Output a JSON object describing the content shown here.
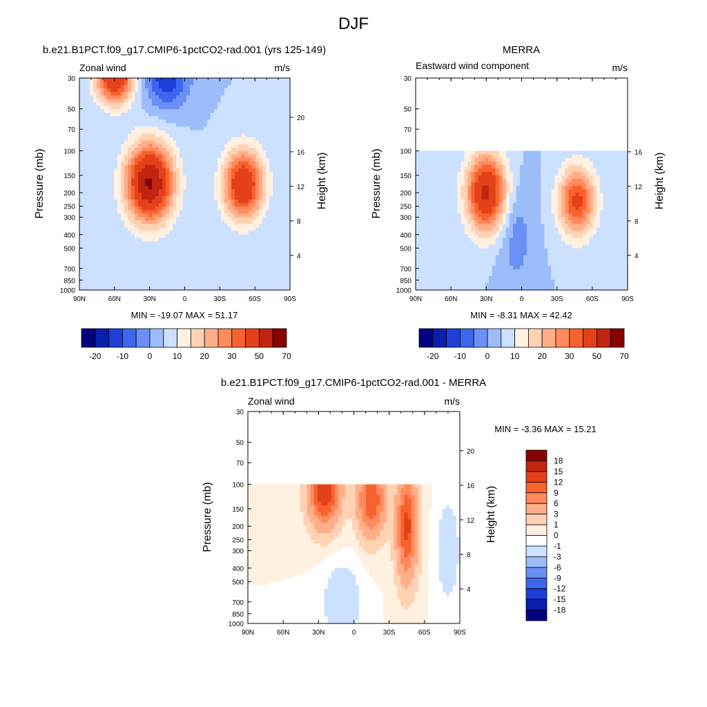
{
  "figure": {
    "title": "DJF"
  },
  "chart_data": [
    {
      "type": "heatmap",
      "title": "b.e21.B1PCT.f09_g17.CMIP6-1pctCO2-rad.001 (yrs 125-149)",
      "left_label": "Zonal wind",
      "units": "m/s",
      "xlabel": "",
      "ylabel": "Pressure (mb)",
      "y2label": "Height (km)",
      "x_ticks": [
        "90N",
        "60N",
        "30N",
        "0",
        "30S",
        "60S",
        "90S"
      ],
      "y_ticks": [
        "30",
        "50",
        "70",
        "100",
        "150",
        "200",
        "250",
        "300",
        "400",
        "500",
        "700",
        "850",
        "1000"
      ],
      "y2_ticks": [
        "20",
        "16",
        "12",
        "8",
        "4"
      ],
      "stats": "MIN = -19.07  MAX =  51.17",
      "data_top_mb": 30,
      "jets": [
        {
          "lat": 30,
          "p": 170,
          "value": 51,
          "lat_width": 14,
          "logp_width": 0.45
        },
        {
          "lat": -50,
          "p": 175,
          "value": 40,
          "lat_width": 12,
          "logp_width": 0.4
        },
        {
          "lat": 60,
          "p": 30,
          "value": 40,
          "lat_width": 11,
          "logp_width": 0.3
        },
        {
          "lat": 15,
          "p": 30,
          "value": -19,
          "lat_width": 13,
          "logp_width": 0.35
        }
      ],
      "colorbar": {
        "labels": [
          "-20",
          "-10",
          "0",
          "10",
          "20",
          "30",
          "50",
          "70"
        ]
      }
    },
    {
      "type": "heatmap",
      "title": "MERRA",
      "left_label": "Eastward wind component",
      "units": "m/s",
      "xlabel": "",
      "ylabel": "Pressure (mb)",
      "y2label": "Height (km)",
      "x_ticks": [
        "90N",
        "60N",
        "30N",
        "0",
        "30S",
        "60S",
        "90S"
      ],
      "y_ticks": [
        "30",
        "50",
        "70",
        "100",
        "150",
        "200",
        "250",
        "300",
        "400",
        "500",
        "700",
        "850",
        "1000"
      ],
      "y2_ticks": [
        "16",
        "12",
        "8",
        "4"
      ],
      "stats": "MIN =  -8.31  MAX =  42.42",
      "data_top_mb": 100,
      "jets": [
        {
          "lat": 30,
          "p": 200,
          "value": 42,
          "lat_width": 12,
          "logp_width": 0.45
        },
        {
          "lat": -47,
          "p": 230,
          "value": 32,
          "lat_width": 11,
          "logp_width": 0.4
        },
        {
          "lat": 5,
          "p": 400,
          "value": -8,
          "lat_width": 10,
          "logp_width": 0.6
        }
      ],
      "colorbar": {
        "labels": [
          "-20",
          "-10",
          "0",
          "10",
          "20",
          "30",
          "50",
          "70"
        ]
      }
    },
    {
      "type": "heatmap",
      "title": "b.e21.B1PCT.f09_g17.CMIP6-1pctCO2-rad.001 - MERRA",
      "left_label": "Zonal wind",
      "units": "m/s",
      "xlabel": "",
      "ylabel": "Pressure (mb)",
      "y2label": "Height (km)",
      "x_ticks": [
        "90N",
        "60N",
        "30N",
        "0",
        "30S",
        "60S",
        "90S"
      ],
      "y_ticks": [
        "30",
        "50",
        "70",
        "100",
        "150",
        "200",
        "250",
        "300",
        "400",
        "500",
        "700",
        "850",
        "1000"
      ],
      "y2_ticks": [
        "20",
        "16",
        "12",
        "8",
        "4"
      ],
      "stats": "MIN =  -3.36  MAX =  15.21",
      "data_top_mb": 100,
      "jets": [
        {
          "lat": 25,
          "p": 110,
          "value": 15,
          "lat_width": 9,
          "logp_width": 0.4
        },
        {
          "lat": -15,
          "p": 130,
          "value": 12,
          "lat_width": 8,
          "logp_width": 0.4
        },
        {
          "lat": -45,
          "p": 200,
          "value": 13,
          "lat_width": 6,
          "logp_width": 0.6
        },
        {
          "lat": 10,
          "p": 700,
          "value": -3,
          "lat_width": 10,
          "logp_width": 0.4
        },
        {
          "lat": -80,
          "p": 300,
          "value": -3,
          "lat_width": 6,
          "logp_width": 0.5
        }
      ],
      "colorbar": {
        "labels": [
          "18",
          "15",
          "12",
          "9",
          "6",
          "3",
          "1",
          "0",
          "-1",
          "-3",
          "-6",
          "-9",
          "-12",
          "-15",
          "-18"
        ]
      }
    }
  ],
  "palette": {
    "abs": [
      "#000080",
      "#0a1fad",
      "#1c3fd6",
      "#3c66ee",
      "#6a90f5",
      "#9dbcfa",
      "#cce0ff",
      "#fff0e0",
      "#ffd2b4",
      "#ffae8a",
      "#ff8a5c",
      "#f8622e",
      "#e4411b",
      "#c22412",
      "#870000"
    ],
    "diff": [
      "#000080",
      "#0a1fad",
      "#1c3fd6",
      "#3c66ee",
      "#6a90f5",
      "#9dbcfa",
      "#cce0ff",
      "#ffffff",
      "#fff0e0",
      "#ffd2b4",
      "#ffae8a",
      "#ff8a5c",
      "#f8622e",
      "#e4411b",
      "#c22412",
      "#870000"
    ]
  }
}
